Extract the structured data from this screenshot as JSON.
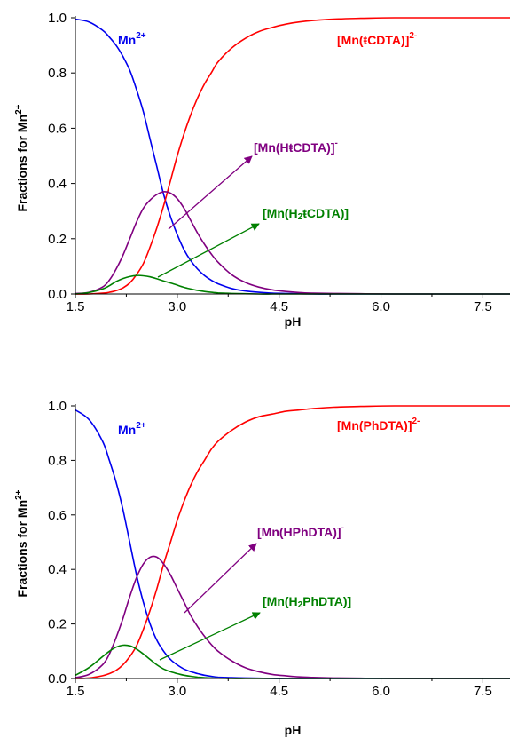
{
  "chart_data": [
    {
      "type": "line",
      "xlabel": "pH",
      "ylabel": {
        "main": "Fractions for Mn",
        "sup": "2+"
      },
      "xlim": [
        1.5,
        7.9
      ],
      "ylim": [
        0,
        1.0
      ],
      "xticks": [
        "1.5",
        "3.0",
        "4.5",
        "6.0",
        "7.5"
      ],
      "xtick_values": [
        1.5,
        3.0,
        4.5,
        6.0,
        7.5
      ],
      "yticks": [
        "0.0",
        "0.2",
        "0.4",
        "0.6",
        "0.8",
        "1.0"
      ],
      "ytick_values": [
        0,
        0.2,
        0.4,
        0.6,
        0.8,
        1.0
      ],
      "x": [
        1.5,
        1.7,
        1.9,
        2.0,
        2.1,
        2.2,
        2.3,
        2.4,
        2.5,
        2.6,
        2.7,
        2.8,
        2.9,
        3.0,
        3.1,
        3.2,
        3.3,
        3.4,
        3.5,
        3.6,
        3.8,
        4.0,
        4.2,
        4.4,
        4.6,
        4.8,
        5.0,
        5.3,
        5.7,
        6.2,
        7.0,
        7.9
      ],
      "series": [
        {
          "key": "mn",
          "color": "#0000ee",
          "values": [
            0.995,
            0.985,
            0.955,
            0.93,
            0.9,
            0.86,
            0.81,
            0.74,
            0.66,
            0.56,
            0.46,
            0.36,
            0.28,
            0.215,
            0.16,
            0.12,
            0.09,
            0.067,
            0.05,
            0.037,
            0.02,
            0.011,
            0.006,
            0.003,
            0.002,
            0.001,
            0.0,
            0.0,
            0.0,
            0.0,
            0.0,
            0.0
          ]
        },
        {
          "key": "ml",
          "color": "#ff0000",
          "values": [
            0.0,
            0.0,
            0.003,
            0.006,
            0.012,
            0.022,
            0.04,
            0.07,
            0.11,
            0.17,
            0.24,
            0.32,
            0.41,
            0.5,
            0.58,
            0.65,
            0.71,
            0.76,
            0.8,
            0.84,
            0.89,
            0.925,
            0.95,
            0.965,
            0.977,
            0.985,
            0.99,
            0.995,
            0.998,
            1.0,
            1.0,
            1.0
          ]
        },
        {
          "key": "mhl",
          "color": "#800080",
          "values": [
            0.002,
            0.006,
            0.025,
            0.05,
            0.09,
            0.14,
            0.2,
            0.26,
            0.31,
            0.34,
            0.36,
            0.37,
            0.365,
            0.345,
            0.31,
            0.265,
            0.22,
            0.18,
            0.145,
            0.115,
            0.07,
            0.042,
            0.025,
            0.015,
            0.009,
            0.005,
            0.003,
            0.002,
            0.001,
            0.0,
            0.0,
            0.0
          ]
        },
        {
          "key": "mh2l",
          "color": "#008000",
          "values": [
            0.0,
            0.005,
            0.018,
            0.03,
            0.045,
            0.056,
            0.063,
            0.067,
            0.066,
            0.062,
            0.055,
            0.047,
            0.04,
            0.032,
            0.024,
            0.018,
            0.013,
            0.009,
            0.006,
            0.004,
            0.002,
            0.001,
            0.0,
            0.0,
            0.0,
            0.0,
            0.0,
            0.0,
            0.0,
            0.0,
            0.0,
            0.0
          ]
        }
      ],
      "labels": {
        "mn": {
          "main": "Mn",
          "sup": "2+",
          "color": "#0000ee"
        },
        "ml": {
          "main": "[Mn(ŧCDTA)]",
          "sup": "2-",
          "color": "#ff0000"
        },
        "mhl": {
          "main": "[Mn(HŧCDTA)]",
          "sup": "-",
          "color": "#800080"
        },
        "mh2l": {
          "pre": "[Mn(H",
          "sub": "2",
          "post": "ŧCDTA)]",
          "color": "#008000"
        }
      }
    },
    {
      "type": "line",
      "xlabel": "pH",
      "ylabel": {
        "main": "Fractions for Mn",
        "sup": "2+"
      },
      "xlim": [
        1.5,
        7.9
      ],
      "ylim": [
        0,
        1.0
      ],
      "xticks": [
        "1.5",
        "3.0",
        "4.5",
        "6.0",
        "7.5"
      ],
      "xtick_values": [
        1.5,
        3.0,
        4.5,
        6.0,
        7.5
      ],
      "yticks": [
        "0.0",
        "0.2",
        "0.4",
        "0.6",
        "0.8",
        "1.0"
      ],
      "ytick_values": [
        0,
        0.2,
        0.4,
        0.6,
        0.8,
        1.0
      ],
      "x": [
        1.5,
        1.7,
        1.9,
        2.0,
        2.1,
        2.2,
        2.3,
        2.4,
        2.5,
        2.6,
        2.7,
        2.8,
        2.9,
        3.0,
        3.1,
        3.2,
        3.3,
        3.4,
        3.5,
        3.6,
        3.8,
        4.0,
        4.2,
        4.4,
        4.6,
        4.8,
        5.0,
        5.3,
        5.7,
        6.2,
        7.0,
        7.9
      ],
      "series": [
        {
          "key": "mn",
          "color": "#0000ee",
          "values": [
            0.985,
            0.95,
            0.87,
            0.8,
            0.72,
            0.62,
            0.5,
            0.38,
            0.28,
            0.2,
            0.14,
            0.1,
            0.07,
            0.05,
            0.035,
            0.025,
            0.018,
            0.012,
            0.008,
            0.005,
            0.003,
            0.002,
            0.001,
            0.0,
            0.0,
            0.0,
            0.0,
            0.0,
            0.0,
            0.0,
            0.0,
            0.0
          ]
        },
        {
          "key": "ml",
          "color": "#ff0000",
          "values": [
            0.0,
            0.002,
            0.01,
            0.018,
            0.03,
            0.05,
            0.08,
            0.12,
            0.18,
            0.25,
            0.33,
            0.42,
            0.5,
            0.58,
            0.65,
            0.71,
            0.76,
            0.8,
            0.84,
            0.87,
            0.91,
            0.94,
            0.96,
            0.97,
            0.98,
            0.985,
            0.99,
            0.995,
            0.998,
            1.0,
            1.0,
            1.0
          ]
        },
        {
          "key": "mhl",
          "color": "#800080",
          "values": [
            0.003,
            0.015,
            0.05,
            0.09,
            0.15,
            0.22,
            0.3,
            0.37,
            0.42,
            0.445,
            0.445,
            0.42,
            0.38,
            0.33,
            0.28,
            0.23,
            0.19,
            0.155,
            0.125,
            0.1,
            0.065,
            0.04,
            0.025,
            0.015,
            0.01,
            0.006,
            0.004,
            0.002,
            0.001,
            0.0,
            0.0,
            0.0
          ]
        },
        {
          "key": "mh2l",
          "color": "#008000",
          "values": [
            0.012,
            0.04,
            0.08,
            0.1,
            0.115,
            0.122,
            0.12,
            0.108,
            0.09,
            0.07,
            0.05,
            0.035,
            0.025,
            0.018,
            0.012,
            0.008,
            0.005,
            0.003,
            0.002,
            0.001,
            0.0,
            0.0,
            0.0,
            0.0,
            0.0,
            0.0,
            0.0,
            0.0,
            0.0,
            0.0,
            0.0,
            0.0
          ]
        }
      ],
      "labels": {
        "mn": {
          "main": "Mn",
          "sup": "2+",
          "color": "#0000ee"
        },
        "ml": {
          "main": "[Mn(PhDTA)]",
          "sup": "2-",
          "color": "#ff0000"
        },
        "mhl": {
          "main": "[Mn(HPhDTA)]",
          "sup": "-",
          "color": "#800080"
        },
        "mh2l": {
          "pre": "[Mn(H",
          "sub": "2",
          "post": "PhDTA)]",
          "color": "#008000"
        }
      }
    }
  ]
}
